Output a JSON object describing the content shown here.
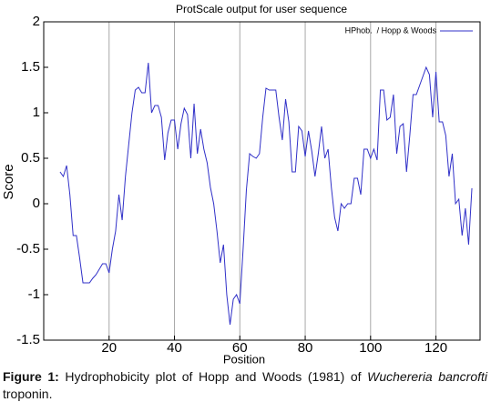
{
  "chart_data": {
    "type": "line",
    "title": "ProtScale output for user sequence",
    "x_label": "Position",
    "y_label": "Score",
    "x": [
      5,
      6,
      7,
      8,
      9,
      10,
      11,
      12,
      13,
      14,
      15,
      16,
      17,
      18,
      19,
      20,
      21,
      22,
      23,
      24,
      25,
      26,
      27,
      28,
      29,
      30,
      31,
      32,
      33,
      34,
      35,
      36,
      37,
      38,
      39,
      40,
      41,
      42,
      43,
      44,
      45,
      46,
      47,
      48,
      49,
      50,
      51,
      52,
      53,
      54,
      55,
      56,
      57,
      58,
      59,
      60,
      61,
      62,
      63,
      64,
      65,
      66,
      67,
      68,
      69,
      70,
      71,
      72,
      73,
      74,
      75,
      76,
      77,
      78,
      79,
      80,
      81,
      82,
      83,
      84,
      85,
      86,
      87,
      88,
      89,
      90,
      91,
      92,
      93,
      94,
      95,
      96,
      97,
      98,
      99,
      100,
      101,
      102,
      103,
      104,
      105,
      106,
      107,
      108,
      109,
      110,
      111,
      112,
      113,
      114,
      115,
      116,
      117,
      118,
      119,
      120,
      121,
      122,
      123,
      124,
      125,
      126,
      127,
      128,
      129,
      130,
      131
    ],
    "series": [
      {
        "name": "HPhob.  / Hopp & Woods",
        "color": "#3030c8",
        "values": [
          0.35,
          0.3,
          0.42,
          0.1,
          -0.35,
          -0.35,
          -0.6,
          -0.87,
          -0.87,
          -0.87,
          -0.82,
          -0.78,
          -0.72,
          -0.66,
          -0.66,
          -0.76,
          -0.5,
          -0.3,
          0.1,
          -0.18,
          0.3,
          0.65,
          1.0,
          1.25,
          1.28,
          1.22,
          1.22,
          1.55,
          1.0,
          1.08,
          1.08,
          0.95,
          0.48,
          0.78,
          0.92,
          0.92,
          0.6,
          0.88,
          1.05,
          0.98,
          0.5,
          1.1,
          0.55,
          0.82,
          0.6,
          0.45,
          0.18,
          0.0,
          -0.3,
          -0.65,
          -0.45,
          -1.0,
          -1.33,
          -1.05,
          -1.0,
          -1.1,
          -0.5,
          0.15,
          0.55,
          0.52,
          0.5,
          0.55,
          0.95,
          1.27,
          1.25,
          1.25,
          1.25,
          0.95,
          0.7,
          1.15,
          0.9,
          0.35,
          0.35,
          0.85,
          0.8,
          0.52,
          0.8,
          0.58,
          0.3,
          0.55,
          0.85,
          0.5,
          0.6,
          0.18,
          -0.15,
          -0.3,
          0.0,
          -0.05,
          0.0,
          0.0,
          0.28,
          0.28,
          0.1,
          0.6,
          0.6,
          0.5,
          0.6,
          0.48,
          1.25,
          1.25,
          0.92,
          0.95,
          1.2,
          0.55,
          0.85,
          0.88,
          0.35,
          0.75,
          1.2,
          1.2,
          1.3,
          1.4,
          1.5,
          1.42,
          0.95,
          1.45,
          0.9,
          0.9,
          0.75,
          0.3,
          0.55,
          0.0,
          0.05,
          -0.35,
          -0.05,
          -0.45,
          0.17
        ]
      }
    ],
    "xlim": [
      0,
      133.5
    ],
    "xticks": [
      20,
      40,
      60,
      80,
      100,
      120
    ],
    "ylim": [
      -1.5,
      2
    ],
    "yticks": [
      -1.5,
      -1,
      -0.5,
      0,
      0.5,
      1,
      1.5,
      2
    ],
    "grid": "x",
    "legend": "upper right"
  },
  "caption": {
    "label": "Figure 1:",
    "text": " Hydrophobicity plot of Hopp and Woods (1981) of ",
    "species": "Wuchereria bancrofti",
    "end": " troponin."
  }
}
